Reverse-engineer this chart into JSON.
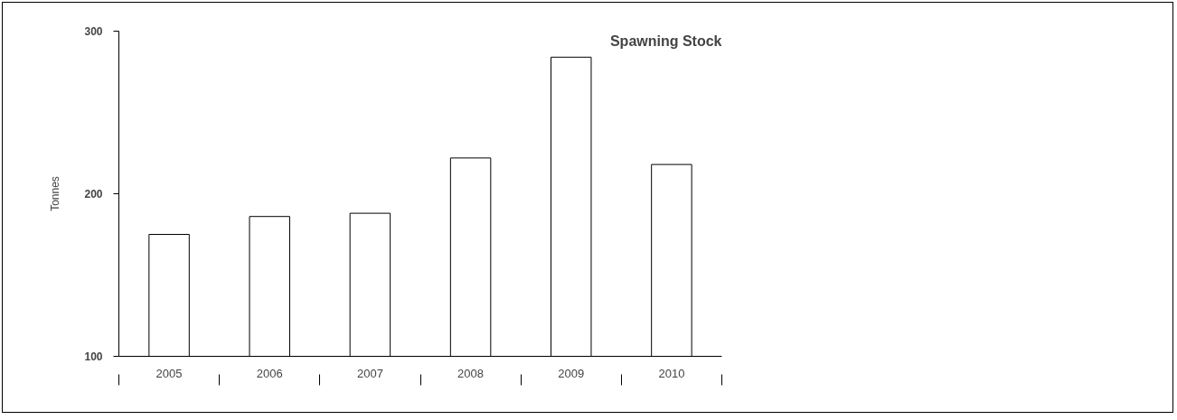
{
  "chart_data": {
    "type": "bar",
    "title": "Spawning Stock",
    "ylabel": "Tonnes",
    "categories": [
      "2005",
      "2006",
      "2007",
      "2008",
      "2009",
      "2010"
    ],
    "values": [
      175,
      186,
      188,
      222,
      284,
      218
    ],
    "color": "#ffffff",
    "ylim": [
      100,
      300
    ],
    "yticks": [
      100,
      200,
      300
    ],
    "grid": false
  }
}
